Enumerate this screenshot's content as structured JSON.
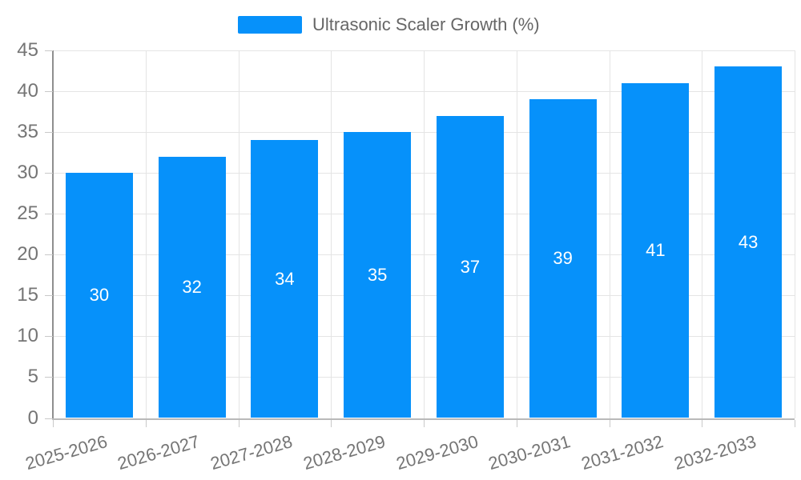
{
  "chart_data": {
    "type": "bar",
    "series_name": "Ultrasonic Scaler Growth (%)",
    "categories": [
      "2025-2026",
      "2026-2027",
      "2027-2028",
      "2028-2029",
      "2029-2030",
      "2030-2031",
      "2031-2032",
      "2032-2033"
    ],
    "values": [
      30,
      32,
      34,
      35,
      37,
      39,
      41,
      43
    ],
    "value_labels": [
      "30",
      "32",
      "34",
      "35",
      "37",
      "39",
      "41",
      "43"
    ],
    "ylim": [
      0,
      45
    ],
    "ytick_step": 5,
    "yticks": [
      "0",
      "5",
      "10",
      "15",
      "20",
      "25",
      "30",
      "35",
      "40",
      "45"
    ],
    "grid": true,
    "legend_position": "top-center",
    "value_label_position": "inside-center",
    "xlabel": "",
    "ylabel": "",
    "title": "",
    "colors": {
      "bar": "#0691fa",
      "grid": "#e4e4e4",
      "y_axis_line": "#8f8f8f",
      "x_axis_line": "#b9b9b9",
      "tick": "#c9c9c9",
      "axis_text": "#757575",
      "legend_text": "#666666",
      "value_text": "#ffffff",
      "background": "#ffffff"
    }
  }
}
